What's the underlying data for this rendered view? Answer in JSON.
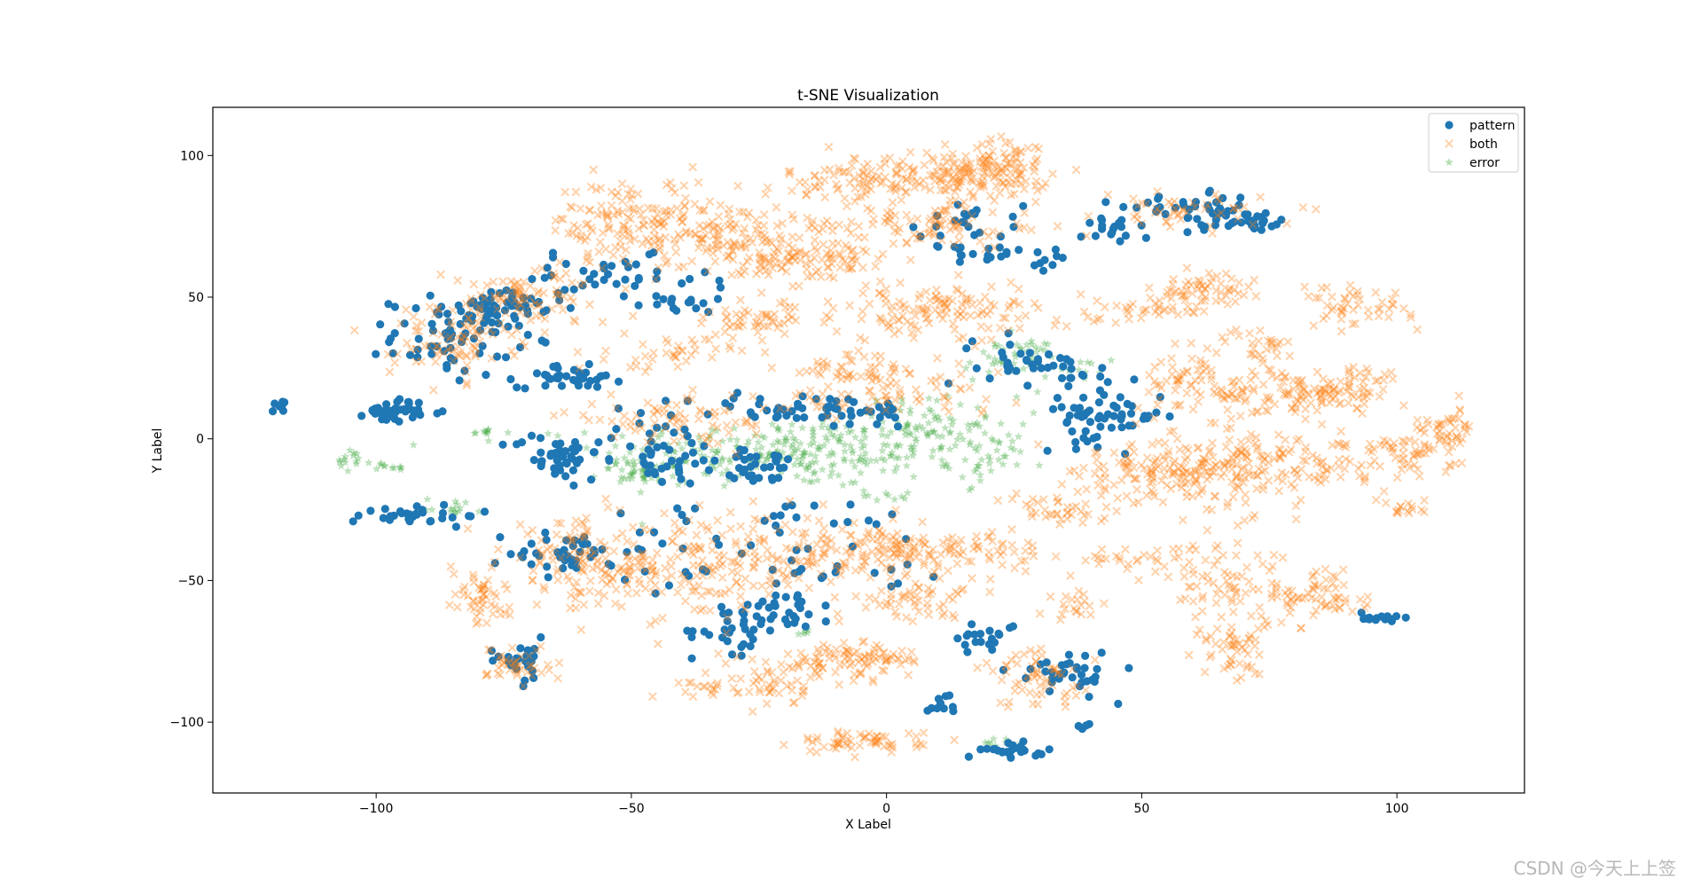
{
  "chart_data": {
    "type": "scatter",
    "title": "t-SNE Visualization",
    "xlabel": "X Label",
    "ylabel": "Y Label",
    "xlim": [
      -132,
      125
    ],
    "ylim": [
      -125,
      117
    ],
    "xticks": [
      -100,
      -50,
      0,
      50,
      100
    ],
    "xtick_labels": [
      "−100",
      "−50",
      "0",
      "50",
      "100"
    ],
    "yticks": [
      100,
      50,
      0,
      -50,
      -100
    ],
    "ytick_labels": [
      "100",
      "50",
      "0",
      "−50",
      "−100"
    ],
    "grid": false,
    "legend_position": "top-right",
    "series": [
      {
        "name": "pattern",
        "marker": "circle",
        "color": "#1f77b4",
        "opacity": 1.0,
        "clusters": [
          {
            "cx": -119,
            "cy": 12,
            "sx": 0.6,
            "sy": 1.2,
            "n": 8
          },
          {
            "cx": -96,
            "cy": 10,
            "sx": 3,
            "sy": 2,
            "n": 40
          },
          {
            "cx": -85,
            "cy": 36,
            "sx": 6,
            "sy": 7,
            "n": 70
          },
          {
            "cx": -75,
            "cy": 46,
            "sx": 6,
            "sy": 4,
            "n": 40
          },
          {
            "cx": -62,
            "cy": 22,
            "sx": 5,
            "sy": 2,
            "n": 40
          },
          {
            "cx": -55,
            "cy": 56,
            "sx": 10,
            "sy": 4,
            "n": 40
          },
          {
            "cx": -40,
            "cy": 48,
            "sx": 4,
            "sy": 2,
            "n": 15
          },
          {
            "cx": -65,
            "cy": -6,
            "sx": 4,
            "sy": 4,
            "n": 40
          },
          {
            "cx": -92,
            "cy": -27,
            "sx": 6,
            "sy": 2,
            "n": 30
          },
          {
            "cx": -62,
            "cy": -40,
            "sx": 6,
            "sy": 4,
            "n": 40
          },
          {
            "cx": -45,
            "cy": -5,
            "sx": 7,
            "sy": 6,
            "n": 50
          },
          {
            "cx": -15,
            "cy": 10,
            "sx": 12,
            "sy": 3,
            "n": 60
          },
          {
            "cx": -25,
            "cy": -10,
            "sx": 6,
            "sy": 3,
            "n": 30
          },
          {
            "cx": -20,
            "cy": -40,
            "sx": 18,
            "sy": 10,
            "n": 60
          },
          {
            "cx": -20,
            "cy": -60,
            "sx": 5,
            "sy": 4,
            "n": 30
          },
          {
            "cx": -30,
            "cy": -68,
            "sx": 4,
            "sy": 4,
            "n": 25
          },
          {
            "cx": -72,
            "cy": -78,
            "sx": 3,
            "sy": 4,
            "n": 25
          },
          {
            "cx": 15,
            "cy": 76,
            "sx": 6,
            "sy": 4,
            "n": 25
          },
          {
            "cx": 20,
            "cy": 65,
            "sx": 3,
            "sy": 2,
            "n": 15
          },
          {
            "cx": 25,
            "cy": 28,
            "sx": 4,
            "sy": 4,
            "n": 25
          },
          {
            "cx": 38,
            "cy": 25,
            "sx": 4,
            "sy": 3,
            "n": 15
          },
          {
            "cx": 42,
            "cy": 8,
            "sx": 6,
            "sy": 5,
            "n": 60
          },
          {
            "cx": 44,
            "cy": 76,
            "sx": 3,
            "sy": 4,
            "n": 20
          },
          {
            "cx": 62,
            "cy": 80,
            "sx": 7,
            "sy": 3,
            "n": 45
          },
          {
            "cx": 72,
            "cy": 76,
            "sx": 3,
            "sy": 2,
            "n": 20
          },
          {
            "cx": 20,
            "cy": -70,
            "sx": 3,
            "sy": 3,
            "n": 20
          },
          {
            "cx": 35,
            "cy": -82,
            "sx": 5,
            "sy": 4,
            "n": 35
          },
          {
            "cx": 25,
            "cy": -110,
            "sx": 3,
            "sy": 1.2,
            "n": 25
          },
          {
            "cx": 12,
            "cy": -93,
            "sx": 2,
            "sy": 2,
            "n": 10
          },
          {
            "cx": 96,
            "cy": -63,
            "sx": 2,
            "sy": 1.2,
            "n": 15
          },
          {
            "cx": 38,
            "cy": -102,
            "sx": 1,
            "sy": 1,
            "n": 6
          },
          {
            "cx": 32,
            "cy": 62,
            "sx": 2,
            "sy": 2,
            "n": 8
          }
        ]
      },
      {
        "name": "both",
        "marker": "x",
        "color": "#ff7f0e",
        "opacity": 0.35,
        "clusters": [
          {
            "cx": -50,
            "cy": 76,
            "sx": 8,
            "sy": 8,
            "n": 140
          },
          {
            "cx": -30,
            "cy": 72,
            "sx": 10,
            "sy": 6,
            "n": 140
          },
          {
            "cx": -15,
            "cy": 62,
            "sx": 8,
            "sy": 4,
            "n": 80
          },
          {
            "cx": 0,
            "cy": 92,
            "sx": 10,
            "sy": 4,
            "n": 120
          },
          {
            "cx": 15,
            "cy": 92,
            "sx": 8,
            "sy": 5,
            "n": 100
          },
          {
            "cx": 25,
            "cy": 98,
            "sx": 4,
            "sy": 4,
            "n": 60
          },
          {
            "cx": 8,
            "cy": 75,
            "sx": 12,
            "sy": 4,
            "n": 90
          },
          {
            "cx": -85,
            "cy": 35,
            "sx": 6,
            "sy": 7,
            "n": 90
          },
          {
            "cx": -70,
            "cy": 50,
            "sx": 8,
            "sy": 5,
            "n": 80
          },
          {
            "cx": -42,
            "cy": 30,
            "sx": 6,
            "sy": 3,
            "n": 40
          },
          {
            "cx": -25,
            "cy": 42,
            "sx": 8,
            "sy": 3,
            "n": 50
          },
          {
            "cx": 10,
            "cy": 45,
            "sx": 14,
            "sy": 5,
            "n": 140
          },
          {
            "cx": -5,
            "cy": 25,
            "sx": 8,
            "sy": 3,
            "n": 50
          },
          {
            "cx": -40,
            "cy": 7,
            "sx": 12,
            "sy": 4,
            "n": 80
          },
          {
            "cx": 0,
            "cy": 15,
            "sx": 12,
            "sy": 3,
            "n": 60
          },
          {
            "cx": -58,
            "cy": -45,
            "sx": 8,
            "sy": 8,
            "n": 130
          },
          {
            "cx": -35,
            "cy": -45,
            "sx": 10,
            "sy": 9,
            "n": 150
          },
          {
            "cx": -10,
            "cy": -40,
            "sx": 10,
            "sy": 6,
            "n": 110
          },
          {
            "cx": 10,
            "cy": -40,
            "sx": 10,
            "sy": 4,
            "n": 110
          },
          {
            "cx": 5,
            "cy": -57,
            "sx": 6,
            "sy": 3,
            "n": 50
          },
          {
            "cx": -80,
            "cy": -55,
            "sx": 3,
            "sy": 6,
            "n": 50
          },
          {
            "cx": -72,
            "cy": -80,
            "sx": 3,
            "sy": 4,
            "n": 40
          },
          {
            "cx": -12,
            "cy": -80,
            "sx": 8,
            "sy": 3,
            "n": 60
          },
          {
            "cx": -3,
            "cy": -77,
            "sx": 5,
            "sy": 3,
            "n": 50
          },
          {
            "cx": -22,
            "cy": -88,
            "sx": 3,
            "sy": 3,
            "n": 30
          },
          {
            "cx": -35,
            "cy": -88,
            "sx": 3,
            "sy": 2,
            "n": 20
          },
          {
            "cx": -5,
            "cy": -107,
            "sx": 6,
            "sy": 2,
            "n": 60
          },
          {
            "cx": 30,
            "cy": -85,
            "sx": 6,
            "sy": 5,
            "n": 60
          },
          {
            "cx": 38,
            "cy": -58,
            "sx": 3,
            "sy": 3,
            "n": 20
          },
          {
            "cx": 62,
            "cy": 52,
            "sx": 5,
            "sy": 3,
            "n": 60
          },
          {
            "cx": 50,
            "cy": 45,
            "sx": 5,
            "sy": 2,
            "n": 30
          },
          {
            "cx": 58,
            "cy": 80,
            "sx": 8,
            "sy": 3,
            "n": 50
          },
          {
            "cx": 60,
            "cy": 20,
            "sx": 6,
            "sy": 5,
            "n": 60
          },
          {
            "cx": 72,
            "cy": 33,
            "sx": 4,
            "sy": 3,
            "n": 30
          },
          {
            "cx": 78,
            "cy": 15,
            "sx": 8,
            "sy": 5,
            "n": 90
          },
          {
            "cx": 90,
            "cy": 18,
            "sx": 6,
            "sy": 4,
            "n": 60
          },
          {
            "cx": 88,
            "cy": 48,
            "sx": 3,
            "sy": 4,
            "n": 30
          },
          {
            "cx": 97,
            "cy": 46,
            "sx": 3,
            "sy": 3,
            "n": 20
          },
          {
            "cx": 50,
            "cy": -10,
            "sx": 8,
            "sy": 5,
            "n": 90
          },
          {
            "cx": 65,
            "cy": -12,
            "sx": 8,
            "sy": 6,
            "n": 110
          },
          {
            "cx": 80,
            "cy": -8,
            "sx": 8,
            "sy": 5,
            "n": 90
          },
          {
            "cx": 100,
            "cy": -5,
            "sx": 6,
            "sy": 5,
            "n": 60
          },
          {
            "cx": 110,
            "cy": 2,
            "sx": 3,
            "sy": 4,
            "n": 40
          },
          {
            "cx": 35,
            "cy": -25,
            "sx": 6,
            "sy": 3,
            "n": 40
          },
          {
            "cx": 65,
            "cy": -50,
            "sx": 5,
            "sy": 8,
            "n": 70
          },
          {
            "cx": 68,
            "cy": -75,
            "sx": 3,
            "sy": 6,
            "n": 50
          },
          {
            "cx": 85,
            "cy": -55,
            "sx": 5,
            "sy": 6,
            "n": 70
          },
          {
            "cx": 48,
            "cy": -42,
            "sx": 6,
            "sy": 2,
            "n": 30
          },
          {
            "cx": 102,
            "cy": -25,
            "sx": 2,
            "sy": 2,
            "n": 15
          }
        ]
      },
      {
        "name": "error",
        "marker": "star",
        "color": "#2ca02c",
        "opacity": 0.3,
        "clusters": [
          {
            "cx": -20,
            "cy": -5,
            "sx": 18,
            "sy": 6,
            "n": 280
          },
          {
            "cx": 10,
            "cy": 5,
            "sx": 8,
            "sy": 5,
            "n": 80
          },
          {
            "cx": 25,
            "cy": 28,
            "sx": 5,
            "sy": 4,
            "n": 50
          },
          {
            "cx": 20,
            "cy": -8,
            "sx": 4,
            "sy": 4,
            "n": 30
          },
          {
            "cx": -48,
            "cy": -12,
            "sx": 4,
            "sy": 2,
            "n": 40
          },
          {
            "cx": -105,
            "cy": -8,
            "sx": 2,
            "sy": 2,
            "n": 15
          },
          {
            "cx": -97,
            "cy": -10,
            "sx": 2,
            "sy": 1,
            "n": 10
          },
          {
            "cx": -78,
            "cy": 2,
            "sx": 2,
            "sy": 1,
            "n": 10
          },
          {
            "cx": -85,
            "cy": -24,
            "sx": 3,
            "sy": 1.5,
            "n": 15
          },
          {
            "cx": 1,
            "cy": -20,
            "sx": 3,
            "sy": 1,
            "n": 10
          },
          {
            "cx": 38,
            "cy": 25,
            "sx": 2,
            "sy": 2,
            "n": 10
          },
          {
            "cx": 22,
            "cy": -108,
            "sx": 2,
            "sy": 1,
            "n": 10
          },
          {
            "cx": -16,
            "cy": -68,
            "sx": 1,
            "sy": 1,
            "n": 5
          }
        ]
      }
    ]
  }
}
